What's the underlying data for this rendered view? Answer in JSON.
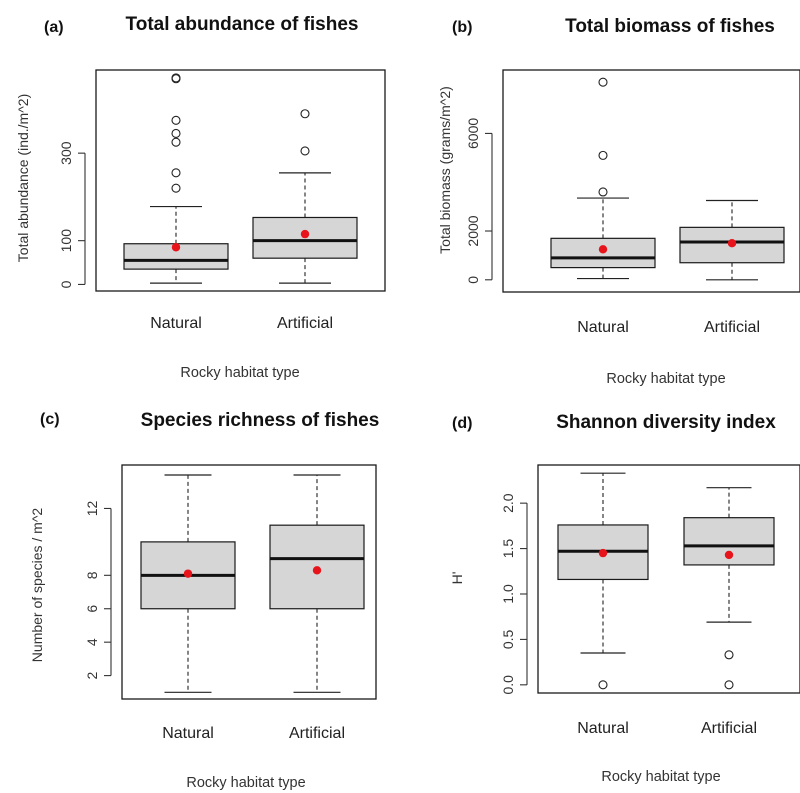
{
  "chart_data": [
    {
      "type": "box",
      "panel_label": "(a)",
      "title": "Total abundance of fishes",
      "xlabel": "Rocky habitat type",
      "ylabel": "Total abundance (ind./m^2)",
      "ylim": [
        -15,
        490
      ],
      "yticks": [
        0,
        100,
        300
      ],
      "categories": [
        "Natural",
        "Artificial"
      ],
      "boxes": [
        {
          "min": 3,
          "q1": 35,
          "median": 55,
          "q3": 93,
          "max": 178,
          "mean": 85,
          "outliers": [
            220,
            255,
            325,
            345,
            375,
            470,
            472
          ]
        },
        {
          "min": 3,
          "q1": 60,
          "median": 100,
          "q3": 153,
          "max": 255,
          "mean": 115,
          "outliers": [
            305,
            390
          ]
        }
      ]
    },
    {
      "type": "box",
      "panel_label": "(b)",
      "title": "Total biomass of fishes",
      "xlabel": "Rocky habitat type",
      "ylabel": "Total biomass (grams/m^2)",
      "ylim": [
        -500,
        8600
      ],
      "yticks": [
        0,
        2000,
        6000
      ],
      "categories": [
        "Natural",
        "Artificial"
      ],
      "boxes": [
        {
          "min": 50,
          "q1": 500,
          "median": 900,
          "q3": 1700,
          "max": 3350,
          "mean": 1250,
          "outliers": [
            3600,
            5100,
            8100
          ]
        },
        {
          "min": 0,
          "q1": 700,
          "median": 1550,
          "q3": 2150,
          "max": 3250,
          "mean": 1500,
          "outliers": []
        }
      ]
    },
    {
      "type": "box",
      "panel_label": "(c)",
      "title": "Species richness of fishes",
      "xlabel": "Rocky habitat type",
      "ylabel": "Number of species / m^2",
      "ylim": [
        0.6,
        14.6
      ],
      "yticks": [
        2,
        4,
        6,
        8,
        12
      ],
      "categories": [
        "Natural",
        "Artificial"
      ],
      "boxes": [
        {
          "min": 1,
          "q1": 6,
          "median": 8,
          "q3": 10,
          "max": 14,
          "mean": 8.1,
          "outliers": []
        },
        {
          "min": 1,
          "q1": 6,
          "median": 9,
          "q3": 11,
          "max": 14,
          "mean": 8.3,
          "outliers": []
        }
      ]
    },
    {
      "type": "box",
      "panel_label": "(d)",
      "title": "Shannon diversity index",
      "xlabel": "Rocky habitat type",
      "ylabel": "H'",
      "ylim": [
        -0.09,
        2.42
      ],
      "yticks": [
        "0.0",
        "0.5",
        "1.0",
        "1.5",
        "2.0"
      ],
      "categories": [
        "Natural",
        "Artificial"
      ],
      "boxes": [
        {
          "min": 0.35,
          "q1": 1.16,
          "median": 1.47,
          "q3": 1.76,
          "max": 2.33,
          "mean": 1.45,
          "outliers": [
            0.0
          ]
        },
        {
          "min": 0.69,
          "q1": 1.32,
          "median": 1.53,
          "q3": 1.84,
          "max": 2.17,
          "mean": 1.43,
          "outliers": [
            0.0,
            0.33
          ]
        }
      ]
    }
  ],
  "colors": {
    "box_fill": "#d6d6d6",
    "mean_marker": "#e8141b",
    "line": "#111111"
  }
}
